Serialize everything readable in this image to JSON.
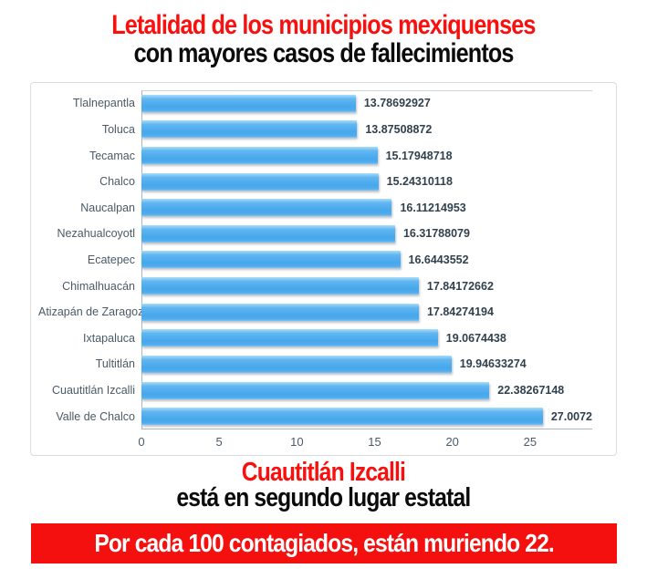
{
  "title": {
    "line1": "Letalidad de los municipios mexiquenses",
    "line2": "con mayores casos de fallecimientos"
  },
  "chart_data": {
    "type": "bar",
    "orientation": "horizontal",
    "title": "",
    "xlabel": "",
    "ylabel": "",
    "categories": [
      "Tlalnepantla",
      "Toluca",
      "Tecamac",
      "Chalco",
      "Naucalpan",
      "Nezahualcoyotl",
      "Ecatepec",
      "Chimalhuacán",
      "Atizapán de Zaragoza",
      "Ixtapaluca",
      "Tultitlán",
      "Cuautitlán Izcalli",
      "Valle de Chalco"
    ],
    "values": [
      13.78692927,
      13.87508872,
      15.17948718,
      15.24310118,
      16.11214953,
      16.31788079,
      16.6443552,
      17.84172662,
      17.84274194,
      19.0674438,
      19.94633274,
      22.38267148,
      27.0072
    ],
    "value_labels": [
      "13.78692927",
      "13.87508872",
      "15.17948718",
      "15.24310118",
      "16.11214953",
      "16.31788079",
      "16.6443552",
      "17.84172662",
      "17.84274194",
      "19.0674438",
      "19.94633274",
      "22.38267148",
      "27.0072"
    ],
    "xlim": [
      0,
      29
    ],
    "xticks": [
      0,
      5,
      10,
      15,
      20,
      25
    ],
    "xtick_labels": [
      "0",
      "5",
      "10",
      "15",
      "20",
      "25"
    ],
    "grid": false,
    "legend": "none",
    "bar_color": "#4FACEE"
  },
  "subtitle": {
    "line1": "Cuautitlán Izcalli",
    "line2": "está en segundo lugar estatal"
  },
  "banner": {
    "text": "Por cada 100 contagiados, están muriendo 22."
  },
  "colors": {
    "accent_red": "#F8100F",
    "banner_bg": "#F3100F",
    "banner_fg": "#FFFFFF",
    "label_color": "#4B5A66",
    "value_color": "#31414F"
  }
}
